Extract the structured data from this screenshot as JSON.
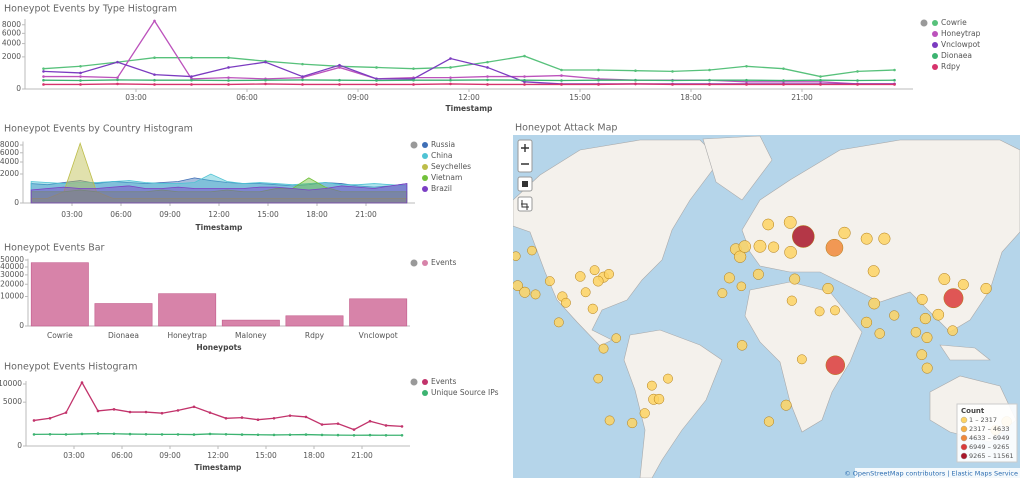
{
  "chart_data": [
    {
      "type": "line",
      "title": "Honeypot Events by Type Histogram",
      "xlabel": "Timestamp",
      "scale": "sqrt",
      "x": [
        0.5,
        1.5,
        2.5,
        3.5,
        4.5,
        5.5,
        6.5,
        7.5,
        8.5,
        9.5,
        10.5,
        11.5,
        12.5,
        13.5,
        14.5,
        15.5,
        16.5,
        17.5,
        18.5,
        19.5,
        20.5,
        21.5,
        22.5,
        23.5
      ],
      "xlim": [
        0,
        24
      ],
      "xticks": [
        {
          "value": 3,
          "label": "03:00"
        },
        {
          "value": 6,
          "label": "06:00"
        },
        {
          "value": 9,
          "label": "09:00"
        },
        {
          "value": 12,
          "label": "12:00"
        },
        {
          "value": 15,
          "label": "15:00"
        },
        {
          "value": 18,
          "label": "18:00"
        },
        {
          "value": 21,
          "label": "21:00"
        }
      ],
      "ylim": [
        0,
        9500
      ],
      "yticks": [
        0,
        2000,
        4000,
        6000,
        8000
      ],
      "series": [
        {
          "name": "Cowrie",
          "color": "#57c17b",
          "values": [
            800,
            1000,
            1400,
            1900,
            1900,
            1900,
            1500,
            1200,
            1000,
            900,
            800,
            900,
            1400,
            2100,
            700,
            700,
            650,
            600,
            700,
            1000,
            800,
            300,
            600,
            700
          ]
        },
        {
          "name": "Honeytrap",
          "color": "#bc52bc",
          "values": [
            300,
            300,
            250,
            9000,
            200,
            250,
            200,
            250,
            900,
            200,
            250,
            250,
            300,
            300,
            350,
            200,
            150,
            150,
            150,
            100,
            100,
            100,
            50,
            50
          ]
        },
        {
          "name": "Vnclowpot",
          "color": "#7b3bc0",
          "values": [
            600,
            500,
            1400,
            400,
            300,
            900,
            1400,
            300,
            1100,
            200,
            200,
            1800,
            900,
            100,
            50,
            50,
            50,
            50,
            50,
            50,
            50,
            50,
            50,
            50
          ]
        },
        {
          "name": "Dionaea",
          "color": "#3cb371",
          "values": [
            150,
            140,
            160,
            150,
            150,
            140,
            150,
            160,
            150,
            140,
            150,
            150,
            160,
            150,
            140,
            150,
            150,
            140,
            150,
            150,
            140,
            150,
            140,
            150
          ]
        },
        {
          "name": "Rdpy",
          "color": "#d6336c",
          "values": [
            40,
            40,
            50,
            40,
            40,
            40,
            50,
            40,
            40,
            40,
            40,
            50,
            40,
            40,
            40,
            40,
            50,
            40,
            40,
            40,
            40,
            40,
            40,
            40
          ]
        }
      ]
    },
    {
      "type": "area",
      "title": "Honeypot Events by Country Histogram",
      "xlabel": "Timestamp",
      "scale": "sqrt",
      "x": [
        0.5,
        1.5,
        2.5,
        3.5,
        4.5,
        5.5,
        6.5,
        7.5,
        8.5,
        9.5,
        10.5,
        11.5,
        12.5,
        13.5,
        14.5,
        15.5,
        16.5,
        17.5,
        18.5,
        19.5,
        20.5,
        21.5,
        22.5,
        23.5
      ],
      "xlim": [
        0,
        24
      ],
      "xticks": [
        {
          "value": 3,
          "label": "03:00"
        },
        {
          "value": 6,
          "label": "06:00"
        },
        {
          "value": 9,
          "label": "09:00"
        },
        {
          "value": 12,
          "label": "12:00"
        },
        {
          "value": 15,
          "label": "15:00"
        },
        {
          "value": 18,
          "label": "18:00"
        },
        {
          "value": 21,
          "label": "21:00"
        }
      ],
      "ylim": [
        0,
        9000
      ],
      "yticks": [
        0,
        2000,
        4000,
        6000,
        8000
      ],
      "series": [
        {
          "name": "Russia",
          "color": "#3f6fb6",
          "values": [
            900,
            800,
            1000,
            1200,
            900,
            1100,
            1000,
            900,
            1000,
            1100,
            1500,
            1200,
            1000,
            900,
            900,
            800,
            700,
            800,
            1000,
            900,
            700,
            600,
            700,
            900
          ]
        },
        {
          "name": "China",
          "color": "#4fc3d4",
          "values": [
            1100,
            1000,
            900,
            1000,
            1000,
            1100,
            1200,
            1000,
            900,
            900,
            1000,
            2000,
            1100,
            900,
            1000,
            900,
            800,
            900,
            1000,
            800,
            800,
            900,
            800,
            700
          ]
        },
        {
          "name": "Seychelles",
          "color": "#bdbd49",
          "values": [
            50,
            50,
            300,
            8500,
            300,
            50,
            50,
            50,
            50,
            50,
            50,
            50,
            50,
            50,
            50,
            50,
            50,
            50,
            50,
            50,
            50,
            50,
            50,
            50
          ]
        },
        {
          "name": "Vietnam",
          "color": "#72c13b",
          "values": [
            300,
            300,
            300,
            400,
            300,
            300,
            300,
            300,
            400,
            300,
            300,
            300,
            400,
            300,
            300,
            500,
            500,
            1500,
            600,
            300,
            300,
            300,
            300,
            300
          ]
        },
        {
          "name": "Brazil",
          "color": "#7b3fc4",
          "values": [
            400,
            500,
            600,
            500,
            500,
            600,
            700,
            500,
            500,
            600,
            500,
            500,
            500,
            500,
            600,
            600,
            500,
            400,
            500,
            700,
            600,
            500,
            700,
            900
          ]
        }
      ]
    },
    {
      "type": "bar",
      "title": "Honeypot Events Bar",
      "xlabel": "Honeypots",
      "scale": "sqrt",
      "categories": [
        "Cowrie",
        "Dionaea",
        "Honeytrap",
        "Maloney",
        "Rdpy",
        "Vnclowpot"
      ],
      "ylim": [
        0,
        52000
      ],
      "yticks": [
        0,
        10000,
        20000,
        30000,
        40000,
        50000
      ],
      "series": [
        {
          "name": "Events",
          "color": "#d783a9",
          "values": [
            46000,
            5800,
            12000,
            400,
            1200,
            8500
          ]
        }
      ]
    },
    {
      "type": "line",
      "title": "Honeypot Events Histogram",
      "xlabel": "Timestamp",
      "scale": "sqrt",
      "x": [
        0.5,
        1.5,
        2.5,
        3.5,
        4.5,
        5.5,
        6.5,
        7.5,
        8.5,
        9.5,
        10.5,
        11.5,
        12.5,
        13.5,
        14.5,
        15.5,
        16.5,
        17.5,
        18.5,
        19.5,
        20.5,
        21.5,
        22.5,
        23.5
      ],
      "xlim": [
        0,
        24
      ],
      "xticks": [
        {
          "value": 3,
          "label": "03:00"
        },
        {
          "value": 6,
          "label": "06:00"
        },
        {
          "value": 9,
          "label": "09:00"
        },
        {
          "value": 12,
          "label": "12:00"
        },
        {
          "value": 15,
          "label": "15:00"
        },
        {
          "value": 18,
          "label": "18:00"
        },
        {
          "value": 21,
          "label": "21:00"
        }
      ],
      "ylim": [
        0,
        11000
      ],
      "yticks": [
        0,
        5000,
        10000
      ],
      "series": [
        {
          "name": "Events",
          "color": "#c2336b",
          "values": [
            1700,
            2000,
            2900,
            10500,
            3200,
            3500,
            3000,
            3000,
            2800,
            3300,
            4000,
            2900,
            2000,
            2100,
            1800,
            2000,
            2400,
            2200,
            1200,
            1300,
            700,
            1600,
            1100,
            1000
          ]
        },
        {
          "name": "Unique Source IPs",
          "color": "#3cb371",
          "values": [
            350,
            360,
            350,
            380,
            400,
            390,
            370,
            360,
            350,
            350,
            340,
            380,
            360,
            340,
            330,
            320,
            330,
            340,
            320,
            310,
            300,
            310,
            300,
            300
          ]
        }
      ]
    },
    {
      "type": "map",
      "title": "Honeypot Attack Map",
      "attribution": "© OpenStreetMap contributors | Elastic Maps Service",
      "legend": {
        "title": "Count",
        "ranges": [
          {
            "label": "1 – 2317",
            "min": 1,
            "max": 2317,
            "color": "#fdd364"
          },
          {
            "label": "2317 – 4633",
            "min": 2317,
            "max": 4633,
            "color": "#f8b042"
          },
          {
            "label": "4633 – 6949",
            "min": 4633,
            "max": 6949,
            "color": "#f0883a"
          },
          {
            "label": "6949 – 9265",
            "min": 6949,
            "max": 9265,
            "color": "#da3b3b"
          },
          {
            "label": "9265 – 11561",
            "min": 9265,
            "max": 11561,
            "color": "#a8162a"
          }
        ]
      },
      "points": [
        {
          "lon": -122,
          "lat": 37,
          "count": 800
        },
        {
          "lon": -118,
          "lat": 34,
          "count": 900
        },
        {
          "lon": -97,
          "lat": 32,
          "count": 600
        },
        {
          "lon": -87,
          "lat": 41,
          "count": 700
        },
        {
          "lon": -74,
          "lat": 40.7,
          "count": 900
        },
        {
          "lon": -80,
          "lat": 26,
          "count": 600
        },
        {
          "lon": -104,
          "lat": 39,
          "count": 500
        },
        {
          "lon": -112,
          "lat": 33,
          "count": 500
        },
        {
          "lon": -95,
          "lat": 29,
          "count": 500
        },
        {
          "lon": -77,
          "lat": 39,
          "count": 800
        },
        {
          "lon": -71,
          "lat": 42,
          "count": 600
        },
        {
          "lon": -84,
          "lat": 34,
          "count": 500
        },
        {
          "lon": -79,
          "lat": 43.6,
          "count": 500
        },
        {
          "lon": -123,
          "lat": 49,
          "count": 400
        },
        {
          "lon": -114,
          "lat": 51,
          "count": 400
        },
        {
          "lon": -99,
          "lat": 19,
          "count": 500
        },
        {
          "lon": -46,
          "lat": -23,
          "count": 900
        },
        {
          "lon": -43,
          "lat": -22.9,
          "count": 700
        },
        {
          "lon": -47,
          "lat": -15.8,
          "count": 500
        },
        {
          "lon": -38,
          "lat": -12,
          "count": 500
        },
        {
          "lon": -51,
          "lat": -30,
          "count": 600
        },
        {
          "lon": -58,
          "lat": -34.6,
          "count": 600
        },
        {
          "lon": -70.6,
          "lat": -33.4,
          "count": 500
        },
        {
          "lon": -77,
          "lat": -12,
          "count": 400
        },
        {
          "lon": -74,
          "lat": 4.7,
          "count": 500
        },
        {
          "lon": -66.9,
          "lat": 10.5,
          "count": 400
        },
        {
          "lon": -0.1,
          "lat": 51.5,
          "count": 1200
        },
        {
          "lon": 2.3,
          "lat": 48.8,
          "count": 1500
        },
        {
          "lon": 13.4,
          "lat": 52.5,
          "count": 1800
        },
        {
          "lon": 4.9,
          "lat": 52.4,
          "count": 1600
        },
        {
          "lon": -3.7,
          "lat": 40.4,
          "count": 900
        },
        {
          "lon": 12.5,
          "lat": 41.9,
          "count": 900
        },
        {
          "lon": 21,
          "lat": 52.2,
          "count": 1000
        },
        {
          "lon": 30.5,
          "lat": 50.4,
          "count": 1700
        },
        {
          "lon": 18,
          "lat": 59.3,
          "count": 1200
        },
        {
          "lon": 30.3,
          "lat": 59.9,
          "count": 1800
        },
        {
          "lon": 82.9,
          "lat": 55,
          "count": 1400
        },
        {
          "lon": 60.6,
          "lat": 56.8,
          "count": 1500
        },
        {
          "lon": 73,
          "lat": 55,
          "count": 1300
        },
        {
          "lon": 32.8,
          "lat": 39.9,
          "count": 900
        },
        {
          "lon": 51.4,
          "lat": 35.7,
          "count": 1000
        },
        {
          "lon": 31.2,
          "lat": 30,
          "count": 600
        },
        {
          "lon": 46.7,
          "lat": 24.7,
          "count": 500
        },
        {
          "lon": 55.3,
          "lat": 25.2,
          "count": 500
        },
        {
          "lon": 77.2,
          "lat": 28.6,
          "count": 1200
        },
        {
          "lon": 72.9,
          "lat": 19,
          "count": 1000
        },
        {
          "lon": 80.3,
          "lat": 13,
          "count": 700
        },
        {
          "lon": 88.4,
          "lat": 22.6,
          "count": 600
        },
        {
          "lon": 116.4,
          "lat": 39.9,
          "count": 1300
        },
        {
          "lon": 113,
          "lat": 23,
          "count": 1200
        },
        {
          "lon": 104,
          "lat": 30.6,
          "count": 900
        },
        {
          "lon": 139.7,
          "lat": 35.7,
          "count": 1000
        },
        {
          "lon": 127,
          "lat": 37.5,
          "count": 900
        },
        {
          "lon": 105.8,
          "lat": 21,
          "count": 1000
        },
        {
          "lon": 106.7,
          "lat": 10.8,
          "count": 900
        },
        {
          "lon": 100.5,
          "lat": 13.7,
          "count": 700
        },
        {
          "lon": 106.8,
          "lat": -6.2,
          "count": 900
        },
        {
          "lon": 103.8,
          "lat": 1.3,
          "count": 800
        },
        {
          "lon": 121,
          "lat": 14.6,
          "count": 700
        },
        {
          "lon": 3.4,
          "lat": 6.5,
          "count": 700
        },
        {
          "lon": 36.8,
          "lat": -1.3,
          "count": 500
        },
        {
          "lon": 28,
          "lat": -26,
          "count": 900
        },
        {
          "lon": 18.4,
          "lat": -33.9,
          "count": 600
        },
        {
          "lon": -7.6,
          "lat": 33.6,
          "count": 500
        },
        {
          "lon": 3,
          "lat": 36.7,
          "count": 400
        },
        {
          "lon": 151.2,
          "lat": -33.9,
          "count": 700
        },
        {
          "lon": 145,
          "lat": -37.8,
          "count": 600
        },
        {
          "lon": 76.9,
          "lat": 43.2,
          "count": 1300
        },
        {
          "lon": 55,
          "lat": 52,
          "count": 5500
        },
        {
          "lon": 121.5,
          "lat": 31.2,
          "count": 8000
        },
        {
          "lon": 55.5,
          "lat": -4.6,
          "count": 7500
        },
        {
          "lon": 37.6,
          "lat": 55.7,
          "count": 11561
        }
      ]
    }
  ]
}
